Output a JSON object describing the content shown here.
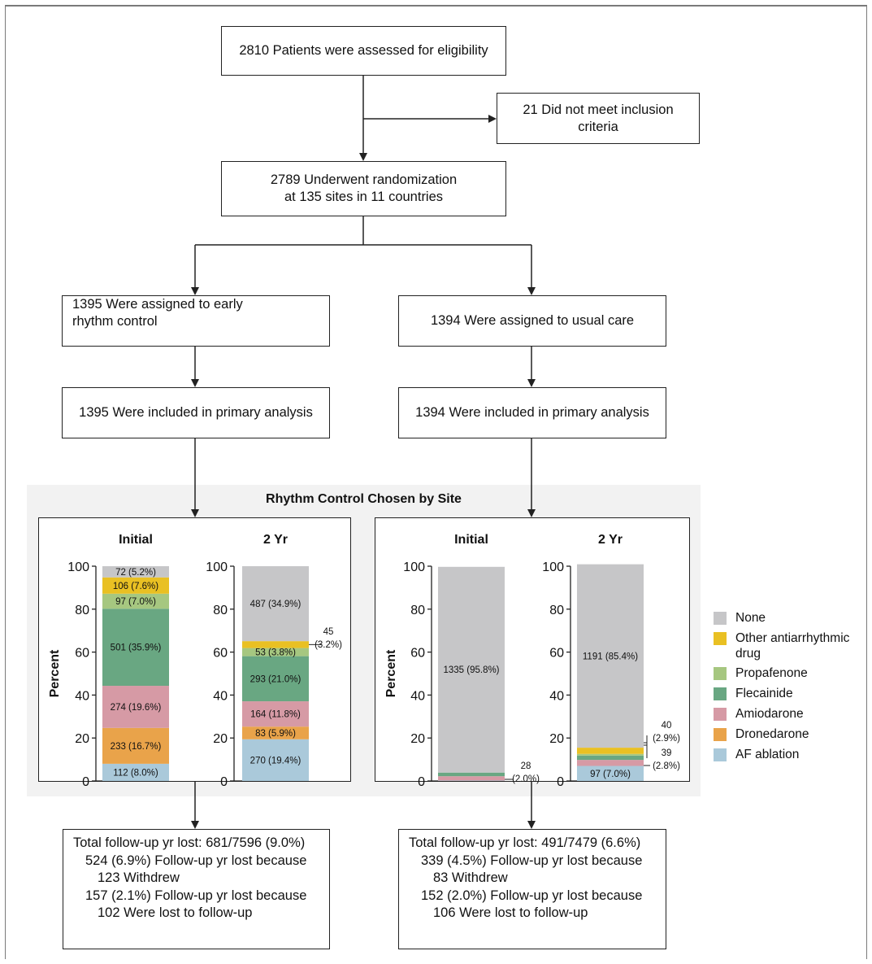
{
  "flow": {
    "assessed": "2810 Patients were assessed for eligibility",
    "excluded": [
      "21 Did not meet inclusion",
      "criteria"
    ],
    "randomized": [
      "2789 Underwent randomization",
      "at 135 sites in 11 countries"
    ],
    "early_assigned": [
      "1395 Were assigned to early",
      "rhythm control"
    ],
    "usual_assigned": "1394 Were assigned to usual care",
    "early_primary": "1395 Were included in primary analysis",
    "usual_primary": "1394 Were included in primary analysis"
  },
  "panel_title": "Rhythm Control Chosen by Site",
  "legend": [
    {
      "label": "None",
      "color": "#c6c6c8"
    },
    {
      "label": "Other antiarrhythmic drug",
      "color": "#e9c023"
    },
    {
      "label": "Propafenone",
      "color": "#a6c780"
    },
    {
      "label": "Flecainide",
      "color": "#69a782"
    },
    {
      "label": "Amiodarone",
      "color": "#d69aa5"
    },
    {
      "label": "Dronedarone",
      "color": "#e9a34a"
    },
    {
      "label": "AF ablation",
      "color": "#aac9da"
    }
  ],
  "chart_data": [
    {
      "type": "bar",
      "group": "Early rhythm control",
      "ylabel": "Percent",
      "ylim": [
        0,
        100
      ],
      "yticks": [
        0,
        20,
        40,
        60,
        80,
        100
      ],
      "categories": [
        "Initial",
        "2 Yr"
      ],
      "stacks": [
        [
          {
            "name": "AF ablation",
            "value": 8.0,
            "label": "112 (8.0%)"
          },
          {
            "name": "Dronedarone",
            "value": 16.7,
            "label": "233 (16.7%)"
          },
          {
            "name": "Amiodarone",
            "value": 19.6,
            "label": "274 (19.6%)"
          },
          {
            "name": "Flecainide",
            "value": 35.9,
            "label": "501 (35.9%)"
          },
          {
            "name": "Propafenone",
            "value": 7.0,
            "label": "97 (7.0%)"
          },
          {
            "name": "Other antiarrhythmic drug",
            "value": 7.6,
            "label": "106 (7.6%)"
          },
          {
            "name": "None",
            "value": 5.2,
            "label": "72 (5.2%)"
          }
        ],
        [
          {
            "name": "AF ablation",
            "value": 19.4,
            "label": "270 (19.4%)"
          },
          {
            "name": "Dronedarone",
            "value": 5.9,
            "label": "83 (5.9%)"
          },
          {
            "name": "Amiodarone",
            "value": 11.8,
            "label": "164 (11.8%)"
          },
          {
            "name": "Flecainide",
            "value": 21.0,
            "label": "293 (21.0%)"
          },
          {
            "name": "Propafenone",
            "value": 3.8,
            "label": "53 (3.8%)"
          },
          {
            "name": "Other antiarrhythmic drug",
            "value": 3.2,
            "label": "45 (3.2%)",
            "callout": [
              "45",
              "(3.2%)"
            ]
          },
          {
            "name": "None",
            "value": 34.9,
            "label": "487 (34.9%)"
          }
        ]
      ]
    },
    {
      "type": "bar",
      "group": "Usual care",
      "ylabel": "Percent",
      "ylim": [
        0,
        100
      ],
      "yticks": [
        0,
        20,
        40,
        60,
        80,
        100
      ],
      "categories": [
        "Initial",
        "2 Yr"
      ],
      "stacks": [
        [
          {
            "name": "AF ablation",
            "value": 0.2,
            "label": ""
          },
          {
            "name": "Amiodarone",
            "value": 2.0,
            "label": "28 (2.0%)",
            "callout": [
              "28",
              "(2.0%)"
            ]
          },
          {
            "name": "Flecainide",
            "value": 1.7,
            "label": ""
          },
          {
            "name": "None",
            "value": 95.8,
            "label": "1335 (95.8%)"
          }
        ],
        [
          {
            "name": "AF ablation",
            "value": 7.0,
            "label": "97 (7.0%)"
          },
          {
            "name": "Amiodarone",
            "value": 2.8,
            "label": "39 (2.8%)",
            "callout": [
              "39",
              "(2.8%)"
            ]
          },
          {
            "name": "Flecainide",
            "value": 2.0,
            "label": ""
          },
          {
            "name": "Propafenone",
            "value": 0.8,
            "label": ""
          },
          {
            "name": "Other antiarrhythmic drug",
            "value": 2.9,
            "label": "40 (2.9%)",
            "callout": [
              "40",
              "(2.9%)"
            ]
          },
          {
            "name": "None",
            "value": 85.4,
            "label": "1191 (85.4%)"
          }
        ]
      ]
    }
  ],
  "followup": {
    "early": [
      "Total follow-up yr lost: 681/7596 (9.0%)",
      "524 (6.9%) Follow-up yr lost because",
      "123 Withdrew",
      "157 (2.1%) Follow-up yr lost because",
      "102 Were lost to follow-up"
    ],
    "usual": [
      "Total follow-up yr lost: 491/7479 (6.6%)",
      "339 (4.5%) Follow-up yr lost because",
      "83 Withdrew",
      "152 (2.0%) Follow-up yr lost because",
      "106 Were lost to follow-up"
    ]
  }
}
